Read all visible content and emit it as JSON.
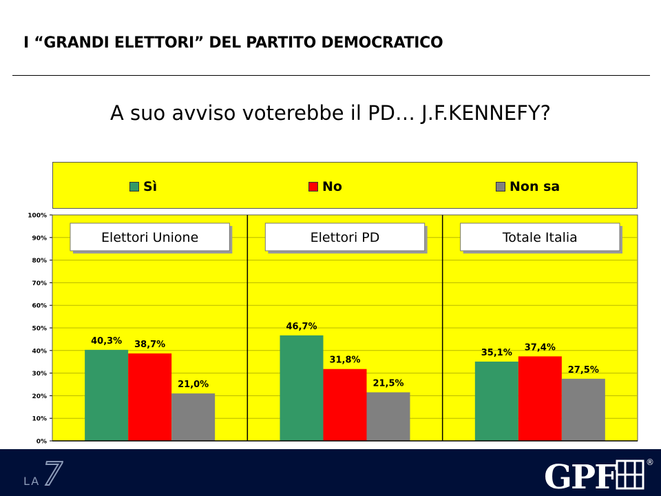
{
  "header": {
    "title": "I “GRANDI ELETTORI” DEL PARTITO DEMOCRATICO",
    "question": "A suo avviso voterebbe il PD… J.F.KENNEFY?"
  },
  "legend": [
    {
      "label": "Sì",
      "color": "#339966"
    },
    {
      "label": "No",
      "color": "#ff0000"
    },
    {
      "label": "Non sa",
      "color": "#808080"
    }
  ],
  "chart_data": {
    "type": "bar",
    "series": [
      {
        "name": "Sì",
        "color": "#339966",
        "values": [
          40.3,
          46.7,
          35.1
        ]
      },
      {
        "name": "No",
        "color": "#ff0000",
        "values": [
          38.7,
          31.8,
          37.4
        ]
      },
      {
        "name": "Non sa",
        "color": "#808080",
        "values": [
          21.0,
          21.5,
          27.5
        ]
      }
    ],
    "panels": [
      "Elettori Unione",
      "Elettori PD",
      "Totale Italia"
    ],
    "value_labels": [
      [
        "40,3%",
        "38,7%",
        "21,0%"
      ],
      [
        "46,7%",
        "31,8%",
        "21,5%"
      ],
      [
        "35,1%",
        "37,4%",
        "27,5%"
      ]
    ],
    "y_ticks": [
      "0%",
      "10%",
      "20%",
      "30%",
      "40%",
      "50%",
      "60%",
      "70%",
      "80%",
      "90%",
      "100%"
    ],
    "ylim": [
      0,
      100
    ],
    "grid": true,
    "legend_position": "top",
    "background": "#ffff00"
  },
  "footer": {
    "left_logo_text": "LA",
    "left_logo_mark": "7",
    "right_logo_text": "GPF",
    "right_logo_mark": "®"
  }
}
